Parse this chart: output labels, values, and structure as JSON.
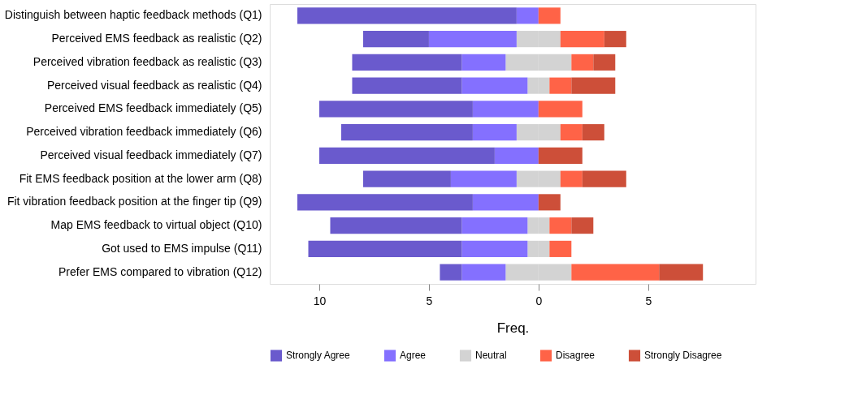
{
  "chart_data": {
    "type": "bar",
    "orientation": "horizontal",
    "stacked": true,
    "xlabel": "Freq.",
    "legend": "bottom",
    "grid": false,
    "categories": [
      "Distinguish between haptic feedback methods (Q1)",
      "Perceived EMS feedback as realistic (Q2)",
      "Perceived vibration feedback as realistic (Q3)",
      "Perceived visual feedback as realistic (Q4)",
      "Perceived EMS feedback immediately (Q5)",
      "Perceived vibration feedback immediately (Q6)",
      "Perceived visual feedback immediately (Q7)",
      "Fit EMS feedback position at the lower arm (Q8)",
      "Fit vibration feedback position at the finger tip (Q9)",
      "Map EMS feedback to virtual object (Q10)",
      "Got used to EMS impulse (Q11)",
      "Prefer EMS compared to vibration (Q12)"
    ],
    "xlim": [
      -12.26,
      9.9
    ],
    "xticks": [
      {
        "value": -10,
        "label": "10"
      },
      {
        "value": -5,
        "label": "5"
      },
      0,
      5
    ],
    "series": [
      {
        "color": "#d3d3d3",
        "values": [
          0,
          -1,
          -1.5,
          -0.5,
          0,
          -1,
          0,
          -1,
          0,
          -0.5,
          -0.5,
          -1.5
        ]
      },
      {
        "name": "Agree",
        "color": "#8470ff",
        "values": [
          -1,
          -4,
          -2,
          -3,
          -3,
          -2,
          -2,
          -3,
          -3,
          -3,
          -3,
          -2
        ]
      },
      {
        "name": "Strongly Agree",
        "color": "#6a5acd",
        "values": [
          -10,
          -3,
          -5,
          -5,
          -7,
          -6,
          -8,
          -4,
          -8,
          -6,
          -7,
          -1
        ]
      },
      {
        "name": "Neutral",
        "color": "#d3d3d3",
        "values": [
          0,
          1,
          1.5,
          0.5,
          0,
          1,
          0,
          1,
          0,
          0.5,
          0.5,
          1.5
        ]
      },
      {
        "name": "Disagree",
        "color": "#ff6347",
        "values": [
          1,
          2,
          1,
          1,
          2,
          1,
          0,
          1,
          0,
          1,
          1,
          4
        ]
      },
      {
        "name": "Strongly Disagree",
        "color": "#cd4f39",
        "values": [
          0,
          1,
          1,
          2,
          0,
          1,
          2,
          2,
          1,
          1,
          0,
          2
        ]
      }
    ]
  }
}
